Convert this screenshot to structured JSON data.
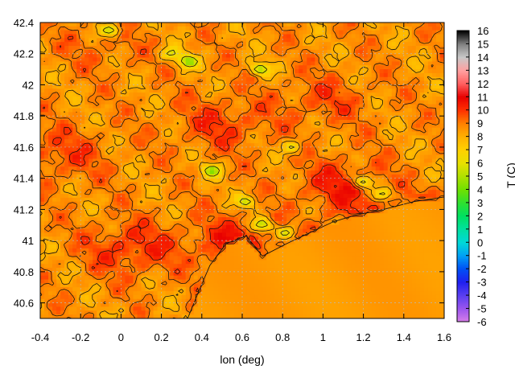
{
  "chart_data": {
    "type": "heatmap",
    "title": "",
    "xlabel": "lon (deg)",
    "ylabel": "",
    "colorbar_label": "T (C)",
    "xlim": [
      -0.4,
      1.6
    ],
    "ylim": [
      40.5,
      42.4
    ],
    "x_ticks": [
      "-0.4",
      "-0.2",
      "0",
      "0.2",
      "0.4",
      "0.6",
      "0.8",
      "1",
      "1.2",
      "1.4",
      "1.6"
    ],
    "y_ticks": [
      "40.6",
      "40.8",
      "41",
      "41.2",
      "41.4",
      "41.6",
      "41.8",
      "42",
      "42.2",
      "42.4"
    ],
    "colorbar_range": [
      -6,
      16
    ],
    "colorbar_ticks": [
      "-6",
      "-5",
      "-4",
      "-3",
      "-2",
      "-1",
      "0",
      "1",
      "2",
      "3",
      "4",
      "5",
      "6",
      "7",
      "8",
      "9",
      "10",
      "11",
      "12",
      "13",
      "14",
      "15",
      "16"
    ],
    "grid": true,
    "sea_temperature": 8.5,
    "coastline_points": [
      [
        0.33,
        40.5
      ],
      [
        0.38,
        40.66
      ],
      [
        0.44,
        40.84
      ],
      [
        0.52,
        40.98
      ],
      [
        0.62,
        41.03
      ],
      [
        0.7,
        40.9
      ],
      [
        0.82,
        40.98
      ],
      [
        0.95,
        41.06
      ],
      [
        1.05,
        41.12
      ],
      [
        1.15,
        41.16
      ],
      [
        1.3,
        41.2
      ],
      [
        1.45,
        41.25
      ],
      [
        1.6,
        41.28
      ]
    ],
    "warm_zones": [
      {
        "lon": 0.05,
        "lat": 40.95,
        "temp": 10.2
      },
      {
        "lon": 0.55,
        "lat": 41.0,
        "temp": 10.0
      },
      {
        "lon": 1.1,
        "lat": 41.35,
        "temp": 10.3
      },
      {
        "lon": -0.3,
        "lat": 41.55,
        "temp": 9.8
      },
      {
        "lon": 0.5,
        "lat": 41.75,
        "temp": 9.9
      },
      {
        "lon": 1.0,
        "lat": 41.9,
        "temp": 9.6
      },
      {
        "lon": -0.1,
        "lat": 42.25,
        "temp": 9.2
      }
    ],
    "cold_zones": [
      {
        "lon": 1.2,
        "lat": 41.38,
        "temp": 4.3
      },
      {
        "lon": 0.33,
        "lat": 42.15,
        "temp": 4.0
      },
      {
        "lon": 0.69,
        "lat": 42.1,
        "temp": 4.2
      },
      {
        "lon": 0.45,
        "lat": 41.45,
        "temp": 4.5
      },
      {
        "lon": 0.7,
        "lat": 41.1,
        "temp": 4.3
      },
      {
        "lon": 0.62,
        "lat": 41.25,
        "temp": 5.0
      },
      {
        "lon": 0.82,
        "lat": 41.05,
        "temp": 4.6
      },
      {
        "lon": 1.08,
        "lat": 41.1,
        "temp": 5.2
      },
      {
        "lon": -0.05,
        "lat": 42.35,
        "temp": 4.5
      },
      {
        "lon": 0.25,
        "lat": 42.2,
        "temp": 5.5
      },
      {
        "lon": 0.85,
        "lat": 41.6,
        "temp": 5.8
      },
      {
        "lon": 1.3,
        "lat": 41.3,
        "temp": 5.0
      }
    ],
    "colormap": [
      [
        -6,
        "#d87fe8"
      ],
      [
        -5,
        "#9a55ee"
      ],
      [
        -4,
        "#5a3ff0"
      ],
      [
        -3,
        "#2020f0"
      ],
      [
        -2,
        "#0050f5"
      ],
      [
        -1,
        "#00a0f5"
      ],
      [
        0,
        "#00d8d8"
      ],
      [
        1,
        "#00e0a0"
      ],
      [
        2,
        "#00e060"
      ],
      [
        3,
        "#30e030"
      ],
      [
        4,
        "#70e000"
      ],
      [
        5,
        "#b0e000"
      ],
      [
        6,
        "#e8e000"
      ],
      [
        7,
        "#ffd000"
      ],
      [
        8,
        "#ffb000"
      ],
      [
        9,
        "#ff8000"
      ],
      [
        10,
        "#ff3000"
      ],
      [
        11,
        "#e80000"
      ],
      [
        12,
        "#ff6060"
      ],
      [
        13,
        "#ffa0a0"
      ],
      [
        14,
        "#c8c8c8"
      ],
      [
        15,
        "#808080"
      ],
      [
        16,
        "#000000"
      ]
    ]
  }
}
